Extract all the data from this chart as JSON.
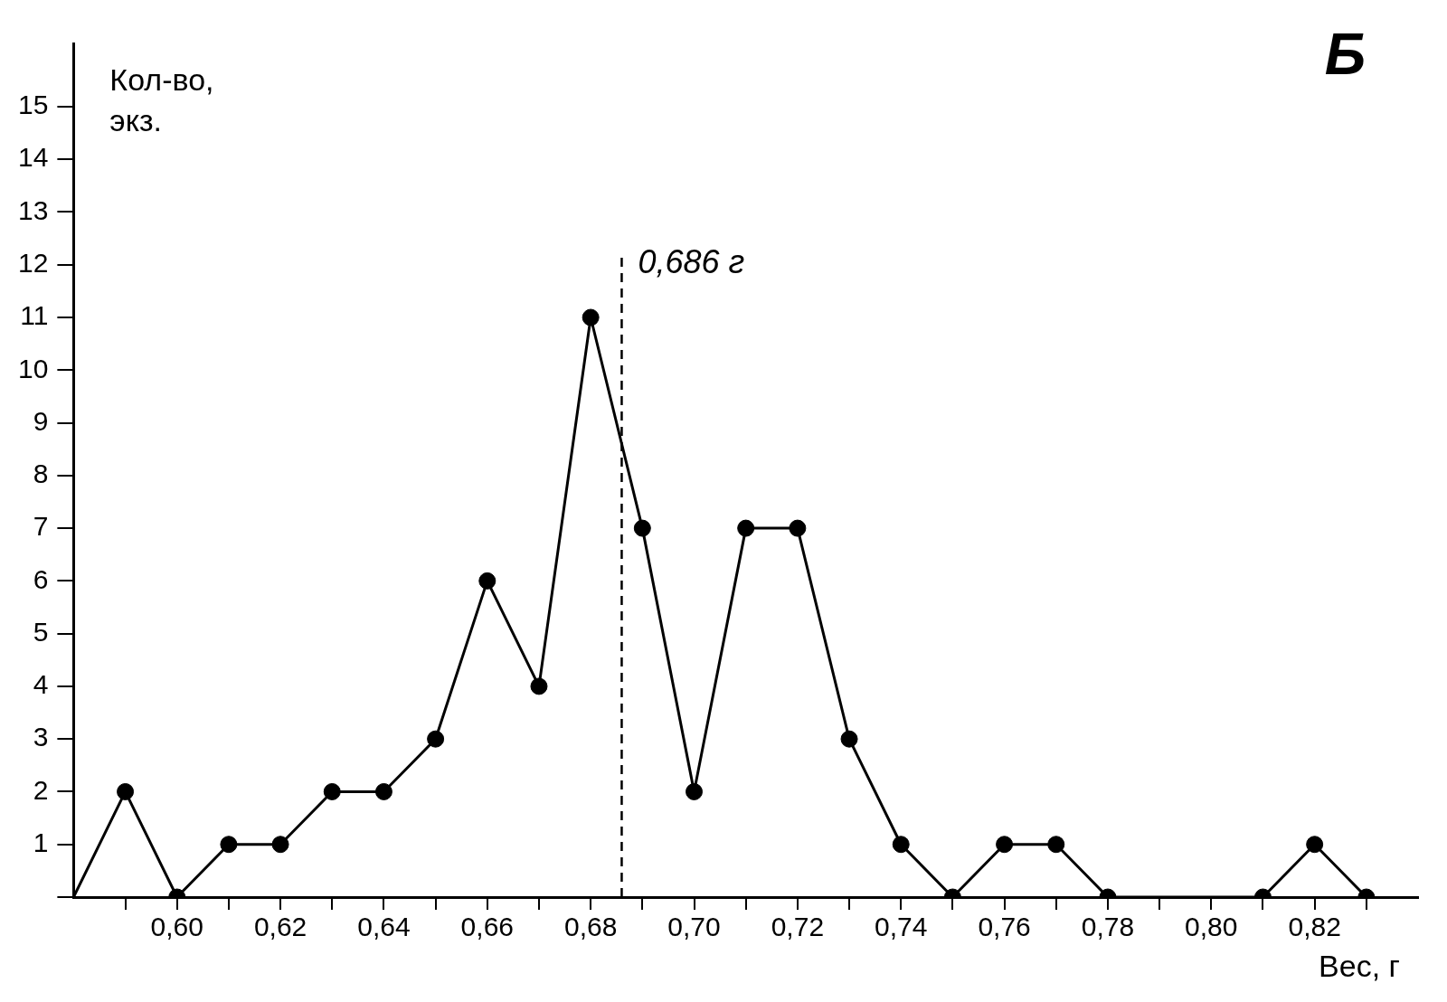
{
  "chart_data": {
    "type": "line",
    "ylabel": "Кол-во, экз.",
    "xlabel": "Вес, г",
    "annotations": [
      "Б"
    ],
    "x": [
      0.58,
      0.59,
      0.6,
      0.61,
      0.62,
      0.63,
      0.64,
      0.65,
      0.66,
      0.67,
      0.68,
      0.69,
      0.7,
      0.71,
      0.72,
      0.73,
      0.74,
      0.75,
      0.76,
      0.77,
      0.78,
      0.81,
      0.82,
      0.83
    ],
    "series": [
      {
        "color": "#000000",
        "values": [
          0,
          2,
          0,
          1,
          1,
          2,
          2,
          3,
          6,
          4,
          11,
          7,
          2,
          7,
          7,
          3,
          1,
          0,
          1,
          1,
          0,
          0,
          1,
          0
        ]
      }
    ],
    "xlim": [
      0.58,
      0.84
    ],
    "xticks": [
      {
        "value": 0.59,
        "label": null
      },
      {
        "value": 0.6,
        "label": "0,60"
      },
      {
        "value": 0.61,
        "label": null
      },
      {
        "value": 0.62,
        "label": "0,62"
      },
      {
        "value": 0.63,
        "label": null
      },
      {
        "value": 0.64,
        "label": "0,64"
      },
      {
        "value": 0.65,
        "label": null
      },
      {
        "value": 0.66,
        "label": "0,66"
      },
      {
        "value": 0.67,
        "label": null
      },
      {
        "value": 0.68,
        "label": "0,68"
      },
      {
        "value": 0.69,
        "label": null
      },
      {
        "value": 0.7,
        "label": "0,70"
      },
      {
        "value": 0.71,
        "label": null
      },
      {
        "value": 0.72,
        "label": "0,72"
      },
      {
        "value": 0.73,
        "label": null
      },
      {
        "value": 0.74,
        "label": "0,74"
      },
      {
        "value": 0.75,
        "label": null
      },
      {
        "value": 0.76,
        "label": "0,76"
      },
      {
        "value": 0.77,
        "label": null
      },
      {
        "value": 0.78,
        "label": "0,78"
      },
      {
        "value": 0.79,
        "label": null
      },
      {
        "value": 0.8,
        "label": "0,80"
      },
      {
        "value": 0.81,
        "label": null
      },
      {
        "value": 0.82,
        "label": "0,82"
      },
      {
        "value": 0.83,
        "label": null
      }
    ],
    "ylim": [
      0,
      16.2
    ],
    "yticks": [
      {
        "value": 0,
        "label": null
      },
      1,
      2,
      3,
      4,
      5,
      6,
      7,
      8,
      9,
      10,
      11,
      12,
      13,
      14,
      15
    ],
    "ref_lines": [
      {
        "axis": "x",
        "value": 0.686,
        "label": "0,686 г",
        "line_style": "dashed"
      }
    ],
    "marker": "circle",
    "grid": false,
    "legend": false
  }
}
